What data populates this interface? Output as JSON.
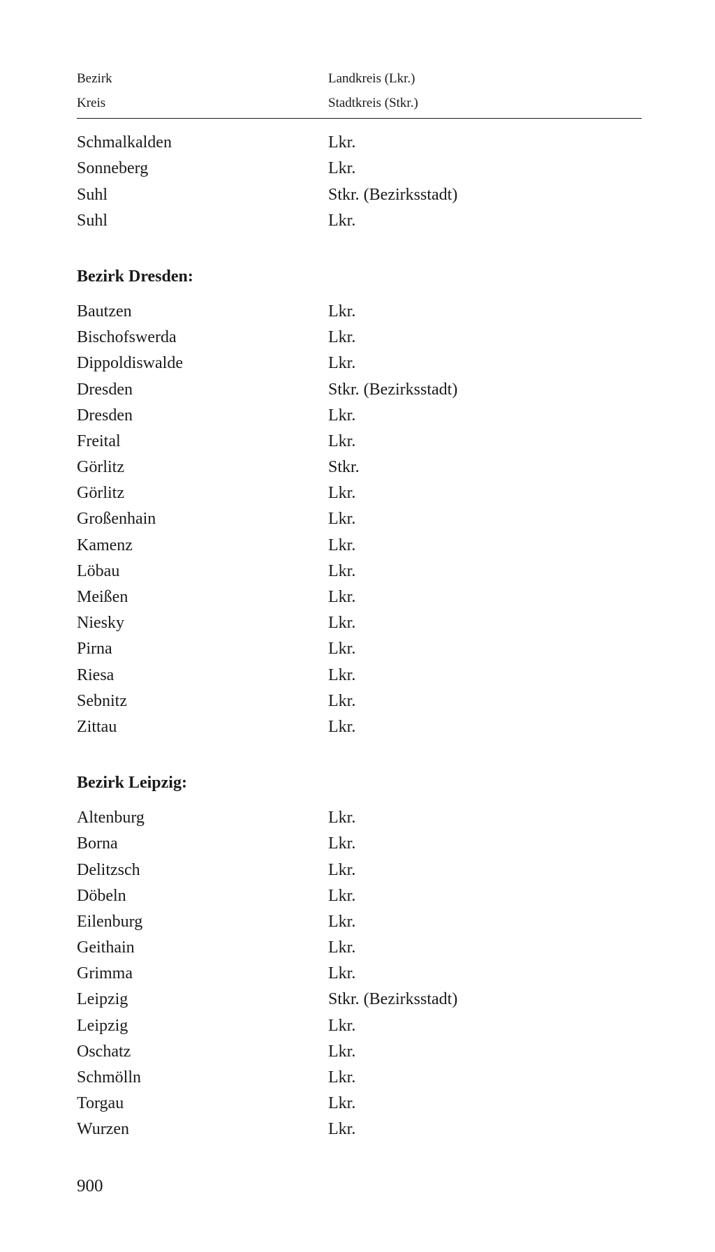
{
  "header": {
    "left_line1": "Bezirk",
    "left_line2": "Kreis",
    "right_line1": "Landkreis (Lkr.)",
    "right_line2": "Stadtkreis (Stkr.)"
  },
  "sections": [
    {
      "title": null,
      "rows": [
        {
          "name": "Schmalkalden",
          "type": "Lkr."
        },
        {
          "name": "Sonneberg",
          "type": "Lkr."
        },
        {
          "name": "Suhl",
          "type": "Stkr. (Bezirksstadt)"
        },
        {
          "name": "Suhl",
          "type": "Lkr."
        }
      ]
    },
    {
      "title": "Bezirk Dresden:",
      "rows": [
        {
          "name": "Bautzen",
          "type": "Lkr."
        },
        {
          "name": "Bischofswerda",
          "type": "Lkr."
        },
        {
          "name": "Dippoldiswalde",
          "type": "Lkr."
        },
        {
          "name": "Dresden",
          "type": "Stkr. (Bezirksstadt)"
        },
        {
          "name": "Dresden",
          "type": "Lkr."
        },
        {
          "name": "Freital",
          "type": "Lkr."
        },
        {
          "name": "Görlitz",
          "type": "Stkr."
        },
        {
          "name": "Görlitz",
          "type": "Lkr."
        },
        {
          "name": "Großenhain",
          "type": "Lkr."
        },
        {
          "name": "Kamenz",
          "type": "Lkr."
        },
        {
          "name": "Löbau",
          "type": "Lkr."
        },
        {
          "name": "Meißen",
          "type": "Lkr."
        },
        {
          "name": "Niesky",
          "type": "Lkr."
        },
        {
          "name": "Pirna",
          "type": "Lkr."
        },
        {
          "name": "Riesa",
          "type": "Lkr."
        },
        {
          "name": "Sebnitz",
          "type": "Lkr."
        },
        {
          "name": "Zittau",
          "type": "Lkr."
        }
      ]
    },
    {
      "title": "Bezirk Leipzig:",
      "rows": [
        {
          "name": "Altenburg",
          "type": "Lkr."
        },
        {
          "name": "Borna",
          "type": "Lkr."
        },
        {
          "name": "Delitzsch",
          "type": "Lkr."
        },
        {
          "name": "Döbeln",
          "type": "Lkr."
        },
        {
          "name": "Eilenburg",
          "type": "Lkr."
        },
        {
          "name": "Geithain",
          "type": "Lkr."
        },
        {
          "name": "Grimma",
          "type": "Lkr."
        },
        {
          "name": "Leipzig",
          "type": "Stkr. (Bezirksstadt)"
        },
        {
          "name": "Leipzig",
          "type": "Lkr."
        },
        {
          "name": "Oschatz",
          "type": "Lkr."
        },
        {
          "name": "Schmölln",
          "type": "Lkr."
        },
        {
          "name": "Torgau",
          "type": "Lkr."
        },
        {
          "name": "Wurzen",
          "type": "Lkr."
        }
      ]
    }
  ],
  "page_number": "900",
  "styling": {
    "background_color": "#ffffff",
    "text_color": "#1a1a1a",
    "font_family": "Georgia, Times New Roman, serif",
    "header_fontsize": 19,
    "body_fontsize": 24,
    "title_fontsize": 24,
    "page_number_fontsize": 25,
    "col_left_width": 360,
    "line_height": 1.55,
    "divider_color": "#1a1a1a"
  }
}
